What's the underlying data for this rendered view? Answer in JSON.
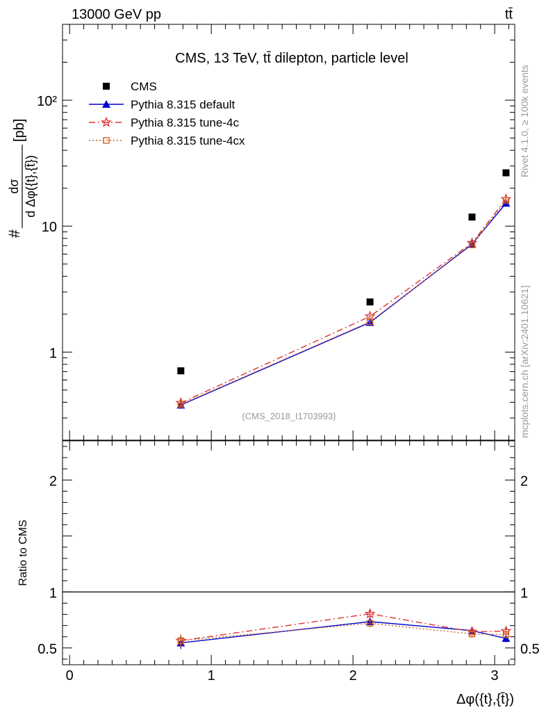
{
  "header": {
    "energy_label": "13000 GeV pp",
    "process_label": "tt̄"
  },
  "side_labels": {
    "rivet": "Rivet 4.1.0, ≥ 100k events",
    "mcplots": "mcplots.cern.ch [arXiv:2401.10621]"
  },
  "chart_data": [
    {
      "type": "scatter",
      "panel": "main",
      "title": "CMS, 13 TeV, tt̄ dilepton, particle level",
      "ylabel_parts": {
        "prefix": "#",
        "num": "dσ",
        "den": "d Δφ({t},{t̄})",
        "suffix": "[pb]"
      },
      "yscale": "log",
      "ylim": [
        0.2,
        400
      ],
      "xlim": [
        -0.05,
        3.1416
      ],
      "ytick_labels": [
        {
          "value": 1,
          "label": "1"
        },
        {
          "value": 10,
          "label": "10"
        },
        {
          "value": 100,
          "label": "10²"
        }
      ],
      "watermark": "(CMS_2018_I1703993)",
      "legend_position": "top-left",
      "x": [
        0.785,
        2.12,
        2.84,
        3.08
      ],
      "series": [
        {
          "name": "CMS",
          "color": "#000000",
          "marker": "square",
          "line": "none",
          "values": [
            0.71,
            2.5,
            11.8,
            26.5
          ],
          "errors": [
            0.0,
            0.0,
            0.0,
            0.0
          ]
        },
        {
          "name": "Pythia 8.315 default",
          "color": "#0000cc",
          "marker": "triangle",
          "line": "solid",
          "values": [
            0.38,
            1.72,
            7.2,
            15.2
          ],
          "errors": [
            0.025,
            0.06,
            0.2,
            0.5
          ]
        },
        {
          "name": "Pythia 8.315 tune-4c",
          "color": "#dd3333",
          "marker": "star",
          "line": "dashdot",
          "values": [
            0.395,
            1.92,
            7.35,
            16.4
          ],
          "errors": [
            0.025,
            0.06,
            0.2,
            0.5
          ]
        },
        {
          "name": "Pythia 8.315 tune-4cx",
          "color": "#cc6622",
          "marker": "open-square",
          "line": "dotted",
          "values": [
            0.385,
            1.74,
            7.1,
            16.0
          ],
          "errors": [
            0.025,
            0.06,
            0.2,
            0.5
          ]
        }
      ]
    },
    {
      "type": "scatter",
      "panel": "ratio",
      "ylabel": "Ratio to CMS",
      "xlabel": "Δφ({t},{t̄})",
      "yscale": "linear",
      "ylim": [
        0.35,
        2.35
      ],
      "xlim": [
        -0.05,
        3.1416
      ],
      "reference_line": 1,
      "ytick_labels": [
        {
          "value": 0.5,
          "label": "0.5"
        },
        {
          "value": 1,
          "label": "1"
        },
        {
          "value": 2,
          "label": "2"
        }
      ],
      "xtick_labels": [
        {
          "value": 0,
          "label": "0"
        },
        {
          "value": 1,
          "label": "1"
        },
        {
          "value": 2,
          "label": "2"
        },
        {
          "value": 3,
          "label": "3"
        }
      ],
      "x": [
        0.785,
        2.12,
        2.84,
        3.08
      ],
      "series": [
        {
          "name": "Pythia 8.315 default",
          "color": "#0000cc",
          "marker": "triangle",
          "line": "solid",
          "values": [
            0.545,
            0.735,
            0.655,
            0.585
          ],
          "errors": [
            0.055,
            0.035,
            0.035,
            0.035
          ]
        },
        {
          "name": "Pythia 8.315 tune-4c",
          "color": "#dd3333",
          "marker": "star",
          "line": "dashdot",
          "values": [
            0.565,
            0.805,
            0.645,
            0.65
          ],
          "errors": [
            0.055,
            0.035,
            0.035,
            0.035
          ]
        },
        {
          "name": "Pythia 8.315 tune-4cx",
          "color": "#cc6622",
          "marker": "open-square",
          "line": "dotted",
          "values": [
            0.565,
            0.72,
            0.625,
            0.62
          ],
          "errors": [
            0.055,
            0.035,
            0.035,
            0.035
          ]
        }
      ]
    }
  ]
}
